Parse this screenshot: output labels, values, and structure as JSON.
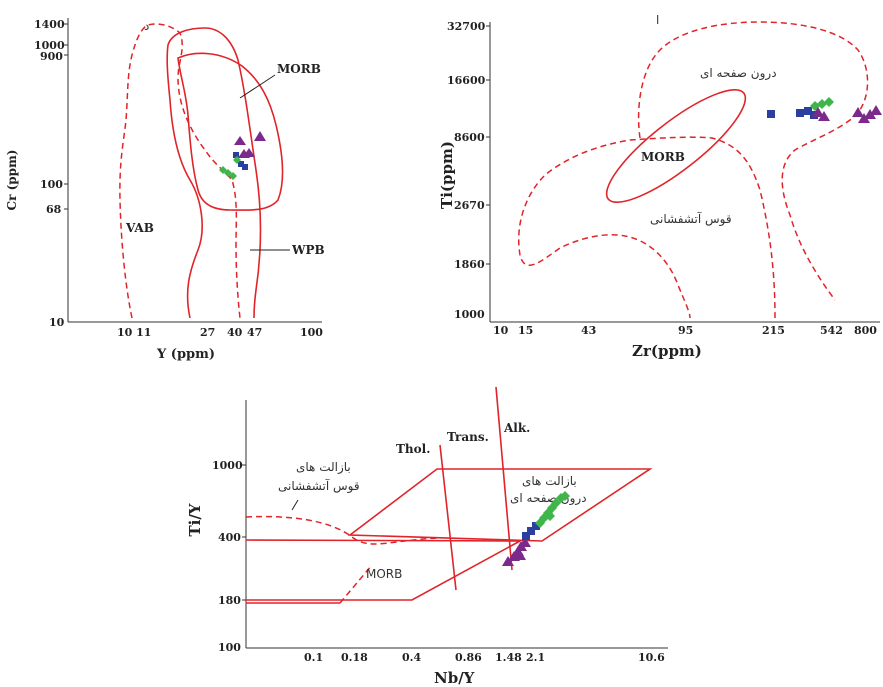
{
  "colors": {
    "field_line": "#e0242a",
    "blue": "#2b3f9e",
    "green": "#3fb54a",
    "purple": "#7b2a8c",
    "axis": "#333333"
  },
  "chart_data": [
    {
      "type": "scatter",
      "xlabel": "Y (ppm)",
      "ylabel": "Cr (ppm)",
      "x_ticks": [
        "10 11",
        "27",
        "40",
        "47",
        "100"
      ],
      "y_ticks": [
        "1400",
        "1000",
        "900",
        "100",
        "68",
        "10"
      ],
      "scale": "log-log",
      "fields": [
        "MORB",
        "VAB",
        "WPB"
      ],
      "series": [
        {
          "marker": "triangle",
          "color": "#7b2a8c",
          "points": [
            [
              38,
              270
            ],
            [
              47,
              265
            ],
            [
              39,
              200
            ],
            [
              41,
              215
            ]
          ]
        },
        {
          "marker": "square",
          "color": "#2b3f9e",
          "points": [
            [
              38,
              175
            ],
            [
              40,
              165
            ],
            [
              41,
              140
            ]
          ]
        },
        {
          "marker": "diamond",
          "color": "#3fb54a",
          "points": [
            [
              30,
              120
            ],
            [
              33,
              115
            ],
            [
              35,
              108
            ],
            [
              37,
              140
            ]
          ]
        }
      ]
    },
    {
      "type": "scatter",
      "xlabel": "Zr(ppm)",
      "ylabel": "Ti(ppm)",
      "x_ticks": [
        "10",
        "15",
        "43",
        "95",
        "215",
        "542",
        "800"
      ],
      "y_ticks": [
        "32700",
        "16600",
        "8600",
        "2670",
        "1860",
        "1000"
      ],
      "scale": "log-log",
      "fields": [
        "MORB",
        "درون صفحه ای",
        "قوس آتشفشانی"
      ],
      "series": [
        {
          "marker": "square",
          "color": "#2b3f9e",
          "points": [
            [
              360,
              11200
            ],
            [
              430,
              11600
            ],
            [
              480,
              11400
            ],
            [
              520,
              12100
            ]
          ]
        },
        {
          "marker": "diamond",
          "color": "#3fb54a",
          "points": [
            [
              495,
              12600
            ],
            [
              515,
              13000
            ],
            [
              540,
              13300
            ]
          ]
        },
        {
          "marker": "triangle",
          "color": "#7b2a8c",
          "points": [
            [
              505,
              12400
            ],
            [
              525,
              10700
            ],
            [
              690,
              11900
            ],
            [
              750,
              11200
            ],
            [
              800,
              10800
            ],
            [
              830,
              12000
            ]
          ]
        }
      ]
    },
    {
      "type": "scatter",
      "xlabel": "Nb/Y",
      "ylabel": "Ti/Y",
      "x_ticks": [
        "0.1",
        "0.18",
        "0.4",
        "0.86",
        "1.48",
        "2.1",
        "10.6"
      ],
      "y_ticks": [
        "1000",
        "400",
        "180",
        "100"
      ],
      "scale": "log-log",
      "fields": [
        "Thol.",
        "Trans.",
        "Alk.",
        "MORB",
        "بازالت های قوس آتشفشانی",
        "بازالت های درون صفحه ای"
      ],
      "series": [
        {
          "marker": "triangle",
          "color": "#7b2a8c",
          "points": [
            [
              1.4,
              320
            ],
            [
              1.5,
              330
            ],
            [
              1.55,
              345
            ],
            [
              1.6,
              360
            ],
            [
              1.7,
              380
            ],
            [
              1.65,
              370
            ],
            [
              1.75,
              395
            ]
          ]
        },
        {
          "marker": "square",
          "color": "#2b3f9e",
          "points": [
            [
              1.8,
              420
            ],
            [
              1.9,
              440
            ],
            [
              2.0,
              455
            ]
          ]
        },
        {
          "marker": "diamond",
          "color": "#3fb54a",
          "points": [
            [
              2.05,
              490
            ],
            [
              2.15,
              520
            ],
            [
              2.25,
              560
            ],
            [
              2.35,
              600
            ],
            [
              2.45,
              650
            ],
            [
              2.55,
              700
            ],
            [
              2.6,
              740
            ],
            [
              2.45,
              680
            ]
          ]
        }
      ]
    }
  ],
  "chart1": {
    "ylabel": "Cr (ppm)",
    "xlabel": "Y (ppm)",
    "yt": {
      "t1400": "1400",
      "t1000": "1000",
      "t900": "900",
      "t100": "100",
      "t68": "68",
      "t10": "10"
    },
    "xt": {
      "t1011": "10 11",
      "t27": "27",
      "t40": "40",
      "t47": "47",
      "t100": "100"
    },
    "fields": {
      "morb": "MORB",
      "vab": "VAB",
      "wpb": "WPB"
    },
    "corner": "د"
  },
  "chart2": {
    "ylabel": "Ti(ppm)",
    "xlabel": "Zr(ppm)",
    "yt": {
      "t32700": "32700",
      "t16600": "16600",
      "t8600": "8600",
      "t2670": "2670",
      "t1860": "1860",
      "t1000": "1000"
    },
    "xt": {
      "t10": "10",
      "t15": "15",
      "t43": "43",
      "t95": "95",
      "t215": "215",
      "t542": "542",
      "t800": "800"
    },
    "fields": {
      "morb": "MORB",
      "within": "درون صفحه ای",
      "arc": "قوس آتشفشانی"
    },
    "corner": "ا"
  },
  "chart3": {
    "ylabel": "Ti/Y",
    "xlabel": "Nb/Y",
    "yt": {
      "t1000": "1000",
      "t400": "400",
      "t180": "180",
      "t100": "100"
    },
    "xt": {
      "t01": "0.1",
      "t018": "0.18",
      "t04": "0.4",
      "t086": "0.86",
      "t148": "1.48",
      "t21": "2.1",
      "t106": "10.6"
    },
    "fields": {
      "thol": "Thol.",
      "trans": "Trans.",
      "alk": "Alk.",
      "morb": "MORB",
      "arc1": "بازالت های",
      "arc2": "قوس آتشفشانی",
      "wpb1": "بازالت های",
      "wpb2": "درون صفحه ای"
    }
  }
}
